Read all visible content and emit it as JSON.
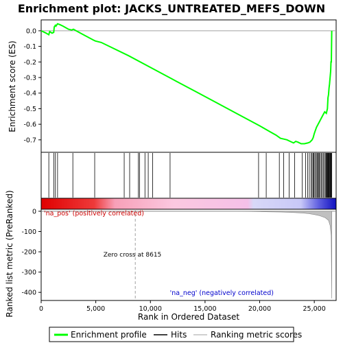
{
  "chart_data": {
    "type": "line",
    "title": "Enrichment plot: JACKS_UNTREATED_MEFS_DOWN",
    "xlabel": "Rank in Ordered Dataset",
    "ylabel_top": "Enrichment score (ES)",
    "ylabel_bottom": "Ranked list metric (PreRanked)",
    "xlim": [
      0,
      27000
    ],
    "x_ticks": [
      0,
      5000,
      10000,
      15000,
      20000,
      25000
    ],
    "x_tick_labels": [
      "0",
      "5,000",
      "10,000",
      "15,000",
      "20,000",
      "25,000"
    ],
    "es_ylim": [
      -0.78,
      0.07
    ],
    "es_ticks": [
      0.0,
      -0.1,
      -0.2,
      -0.3,
      -0.4,
      -0.5,
      -0.6,
      -0.7
    ],
    "es_tick_labels": [
      "0.0",
      "-0.1",
      "-0.2",
      "-0.3",
      "-0.4",
      "-0.5",
      "-0.6",
      "-0.7"
    ],
    "metric_ylim": [
      -440,
      10
    ],
    "metric_ticks": [
      0,
      -100,
      -200,
      -300,
      -400
    ],
    "metric_tick_labels": [
      "0",
      "-100",
      "-200",
      "-300",
      "-400"
    ],
    "series": [
      {
        "name": "Enrichment profile",
        "color": "#00ff00",
        "x": [
          0,
          450,
          700,
          780,
          1000,
          1150,
          1200,
          1300,
          1350,
          1500,
          1700,
          2000,
          2500,
          2800,
          2950,
          3200,
          4000,
          4800,
          4950,
          5500,
          8000,
          10000,
          12000,
          14000,
          16000,
          18000,
          20000,
          21000,
          21500,
          21900,
          22200,
          22500,
          22800,
          23100,
          23300,
          23500,
          23800,
          24100,
          24400,
          24600,
          24800,
          24900,
          25000,
          25100,
          25200,
          25350,
          25500,
          25650,
          25800,
          25950,
          26100,
          26200,
          26250,
          26300,
          26350,
          26400,
          26450,
          26500,
          26530,
          26560,
          26600
        ],
        "y": [
          0.0,
          -0.015,
          -0.025,
          -0.005,
          -0.015,
          -0.01,
          0.025,
          0.035,
          0.03,
          0.045,
          0.04,
          0.03,
          0.01,
          0.005,
          0.01,
          0.0,
          -0.03,
          -0.06,
          -0.065,
          -0.075,
          -0.16,
          -0.235,
          -0.31,
          -0.385,
          -0.46,
          -0.535,
          -0.61,
          -0.65,
          -0.67,
          -0.69,
          -0.695,
          -0.7,
          -0.71,
          -0.72,
          -0.71,
          -0.715,
          -0.725,
          -0.725,
          -0.72,
          -0.715,
          -0.7,
          -0.685,
          -0.66,
          -0.64,
          -0.62,
          -0.6,
          -0.58,
          -0.56,
          -0.54,
          -0.52,
          -0.53,
          -0.5,
          -0.43,
          -0.41,
          -0.37,
          -0.34,
          -0.3,
          -0.26,
          -0.2,
          -0.2,
          0.0
        ]
      }
    ],
    "hits": [
      700,
      1150,
      1300,
      1500,
      2900,
      4900,
      7600,
      8100,
      8900,
      9000,
      9500,
      9800,
      10200,
      11800,
      19900,
      20600,
      21800,
      22200,
      22700,
      23200,
      23900,
      24200,
      24400,
      24550,
      24700,
      24800,
      24900,
      24950,
      25050,
      25150,
      25250,
      25300,
      25400,
      25450,
      25550,
      25650,
      25750,
      25850,
      25950,
      26050,
      26100,
      26150,
      26200,
      26250,
      26300,
      26350,
      26400,
      26450,
      26500,
      26550,
      26600
    ],
    "metric_curve": {
      "x": [
        0,
        18000,
        20000,
        21000,
        22000,
        23000,
        24000,
        24500,
        25000,
        25500,
        26000,
        26300,
        26450,
        26550,
        26600
      ],
      "y": [
        0,
        0,
        -2,
        -3,
        -4,
        -6,
        -9,
        -12,
        -16,
        -22,
        -32,
        -45,
        -70,
        -120,
        -430
      ]
    },
    "zero_cross_label": "Zero cross at 8615",
    "zero_cross_x": 8615,
    "pos_label": "'na_pos' (positively correlated)",
    "neg_label": "'na_neg' (negatively correlated)",
    "colors": {
      "es_line": "#00ff00",
      "hits": "#000000",
      "pos_label": "#cc0000",
      "neg_label": "#0000cc",
      "metric": "#c0c0c0"
    },
    "legend": {
      "placement": "bottom",
      "items": [
        "Enrichment profile",
        "Hits",
        "Ranking metric scores"
      ]
    }
  }
}
